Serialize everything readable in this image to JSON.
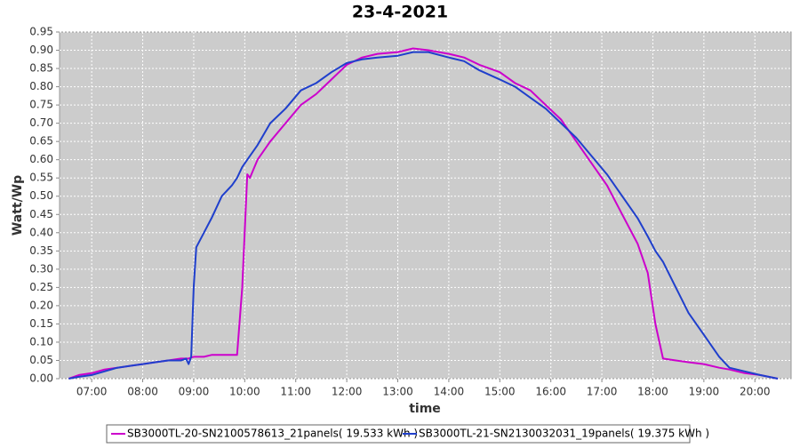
{
  "chart_data": {
    "type": "line",
    "title": "23-4-2021",
    "x_label": "time",
    "y_label": "Watt/Wp",
    "x": [
      6.55,
      6.75,
      7,
      7.25,
      7.5,
      7.75,
      8,
      8.25,
      8.5,
      8.75,
      8.85,
      8.9,
      8.95,
      9,
      9.05,
      9.2,
      9.35,
      9.55,
      9.75,
      9.85,
      9.95,
      10.05,
      10.1,
      10.25,
      10.5,
      10.8,
      11.1,
      11.4,
      11.7,
      12,
      12.3,
      12.6,
      13,
      13.3,
      13.6,
      14,
      14.3,
      14.6,
      15,
      15.3,
      15.6,
      15.9,
      16.2,
      16.5,
      16.8,
      17.1,
      17.4,
      17.7,
      17.9,
      18.05,
      18.2,
      18.45,
      18.7,
      19,
      19.3,
      19.5,
      19.8,
      20.1,
      20.45
    ],
    "series": [
      {
        "name": "SB3000TL-20-SN2100578613_21panels( 19.533 kWh )",
        "color": "#cc00cc",
        "values": [
          0,
          0.01,
          0.015,
          0.025,
          0.03,
          0.035,
          0.04,
          0.045,
          0.05,
          0.055,
          0.055,
          0.055,
          0.058,
          0.06,
          0.06,
          0.06,
          0.065,
          0.065,
          0.065,
          0.065,
          0.25,
          0.56,
          0.55,
          0.6,
          0.65,
          0.7,
          0.75,
          0.78,
          0.82,
          0.86,
          0.88,
          0.89,
          0.895,
          0.905,
          0.9,
          0.89,
          0.88,
          0.86,
          0.84,
          0.81,
          0.79,
          0.75,
          0.71,
          0.65,
          0.59,
          0.53,
          0.45,
          0.37,
          0.29,
          0.15,
          0.055,
          0.05,
          0.045,
          0.04,
          0.03,
          0.025,
          0.015,
          0.01,
          0
        ]
      },
      {
        "name": "SB3000TL-21-SN2130032031_19panels( 19.375 kWh )",
        "color": "#1f3fcc",
        "values": [
          0,
          0.005,
          0.01,
          0.02,
          0.03,
          0.035,
          0.04,
          0.045,
          0.05,
          0.05,
          0.055,
          0.04,
          0.06,
          0.25,
          0.36,
          0.4,
          0.44,
          0.5,
          0.53,
          0.55,
          0.58,
          0.6,
          0.61,
          0.64,
          0.7,
          0.74,
          0.79,
          0.81,
          0.84,
          0.865,
          0.875,
          0.88,
          0.885,
          0.895,
          0.895,
          0.88,
          0.87,
          0.845,
          0.82,
          0.8,
          0.77,
          0.74,
          0.7,
          0.66,
          0.61,
          0.56,
          0.5,
          0.44,
          0.39,
          0.35,
          0.32,
          0.25,
          0.18,
          0.12,
          0.06,
          0.03,
          0.02,
          0.01,
          0
        ]
      }
    ],
    "xlim": [
      6.37,
      20.71
    ],
    "xticks": [
      {
        "value": 7,
        "label": "07:00"
      },
      {
        "value": 8,
        "label": "08:00"
      },
      {
        "value": 9,
        "label": "09:00"
      },
      {
        "value": 10,
        "label": "10:00"
      },
      {
        "value": 11,
        "label": "11:00"
      },
      {
        "value": 12,
        "label": "12:00"
      },
      {
        "value": 13,
        "label": "13:00"
      },
      {
        "value": 14,
        "label": "14:00"
      },
      {
        "value": 15,
        "label": "15:00"
      },
      {
        "value": 16,
        "label": "16:00"
      },
      {
        "value": 17,
        "label": "17:00"
      },
      {
        "value": 18,
        "label": "18:00"
      },
      {
        "value": 19,
        "label": "19:00"
      },
      {
        "value": 20,
        "label": "20:00"
      }
    ],
    "ylim": [
      0,
      0.95
    ],
    "yticks": [
      {
        "value": 0,
        "label": "0.00"
      },
      0.05,
      {
        "value": 0.1,
        "label": "0.10"
      },
      0.15,
      {
        "value": 0.2,
        "label": "0.20"
      },
      0.25,
      {
        "value": 0.3,
        "label": "0.30"
      },
      0.35,
      {
        "value": 0.4,
        "label": "0.40"
      },
      0.45,
      {
        "value": 0.5,
        "label": "0.50"
      },
      0.55,
      {
        "value": 0.6,
        "label": "0.60"
      },
      0.65,
      {
        "value": 0.7,
        "label": "0.70"
      },
      0.75,
      {
        "value": 0.8,
        "label": "0.80"
      },
      0.85,
      {
        "value": 0.9,
        "label": "0.90"
      },
      0.95
    ],
    "grid": true
  }
}
